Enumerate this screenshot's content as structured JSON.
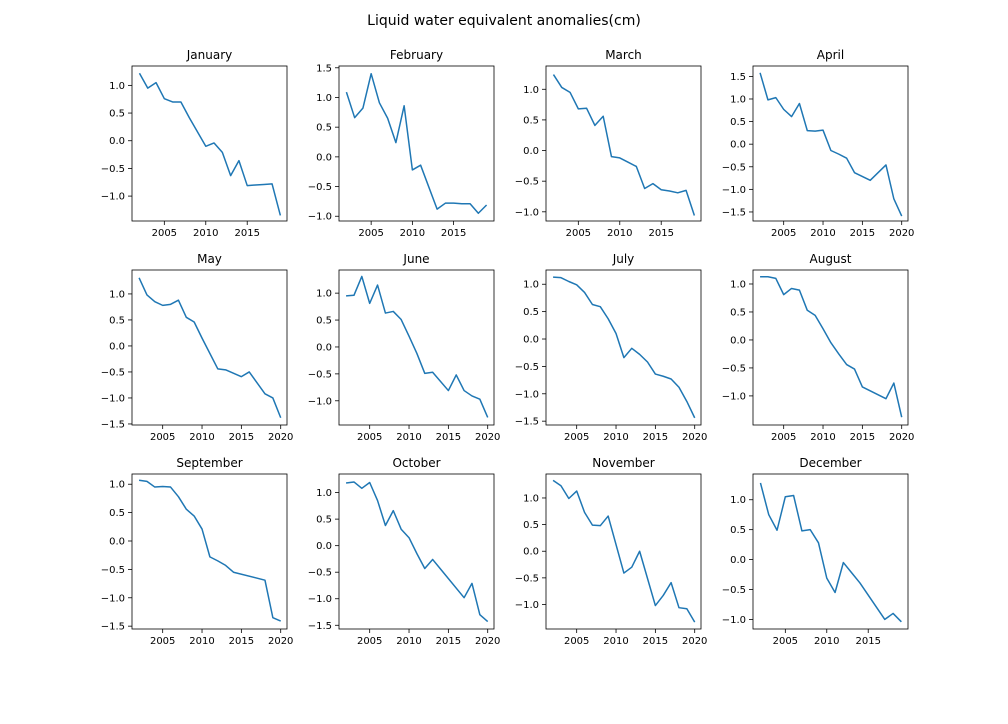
{
  "figure": {
    "title": "Liquid water equivalent anomalies(cm)"
  },
  "chart_data": [
    {
      "type": "line",
      "title": "January",
      "xlim": [
        2001.1,
        2019.8
      ],
      "ylim": [
        -1.45,
        1.35
      ],
      "xticks": [
        2005,
        2010,
        2015
      ],
      "yticks": [
        -1.0,
        -0.5,
        0.0,
        0.5,
        1.0
      ],
      "x": [
        2002,
        2003,
        2004,
        2005,
        2006,
        2007,
        2008,
        2010,
        2011,
        2012,
        2013,
        2014,
        2015,
        2016,
        2017,
        2018,
        2019
      ],
      "y": [
        1.22,
        0.95,
        1.05,
        0.76,
        0.7,
        0.7,
        0.42,
        -0.1,
        -0.04,
        -0.21,
        -0.63,
        -0.36,
        -0.81,
        -0.8,
        -0.79,
        -0.78,
        -1.35
      ],
      "color": "#1f77b4"
    },
    {
      "type": "line",
      "title": "February",
      "xlim": [
        2001.1,
        2019.9
      ],
      "ylim": [
        -1.08,
        1.53
      ],
      "xticks": [
        2005,
        2010,
        2015
      ],
      "yticks": [
        -1.0,
        -0.5,
        0.0,
        0.5,
        1.0,
        1.5
      ],
      "x": [
        2002,
        2003,
        2004,
        2005,
        2006,
        2007,
        2008,
        2009,
        2010,
        2011,
        2013,
        2014,
        2015,
        2016,
        2017,
        2018,
        2019
      ],
      "y": [
        1.09,
        0.66,
        0.82,
        1.4,
        0.91,
        0.65,
        0.24,
        0.86,
        -0.22,
        -0.14,
        -0.88,
        -0.78,
        -0.78,
        -0.79,
        -0.79,
        -0.95,
        -0.81
      ],
      "color": "#1f77b4"
    },
    {
      "type": "line",
      "title": "March",
      "xlim": [
        2001.1,
        2019.8
      ],
      "ylim": [
        -1.15,
        1.38
      ],
      "xticks": [
        2005,
        2010,
        2015
      ],
      "yticks": [
        -1.0,
        -0.5,
        0.0,
        0.5,
        1.0
      ],
      "x": [
        2002,
        2003,
        2004,
        2005,
        2006,
        2007,
        2008,
        2009,
        2010,
        2011,
        2012,
        2013,
        2014,
        2015,
        2016,
        2017,
        2018,
        2019
      ],
      "y": [
        1.24,
        1.03,
        0.95,
        0.68,
        0.69,
        0.41,
        0.56,
        -0.1,
        -0.12,
        -0.19,
        -0.26,
        -0.62,
        -0.54,
        -0.64,
        -0.66,
        -0.69,
        -0.65,
        -1.06
      ],
      "color": "#1f77b4"
    },
    {
      "type": "line",
      "title": "April",
      "xlim": [
        2001.1,
        2020.8
      ],
      "ylim": [
        -1.7,
        1.73
      ],
      "xticks": [
        2005,
        2010,
        2015,
        2020
      ],
      "yticks": [
        -1.5,
        -1.0,
        -0.5,
        0.0,
        0.5,
        1.0,
        1.5
      ],
      "x": [
        2002,
        2003,
        2004,
        2005,
        2006,
        2007,
        2008,
        2009,
        2010,
        2011,
        2012,
        2013,
        2014,
        2016,
        2018,
        2019,
        2020
      ],
      "y": [
        1.58,
        0.98,
        1.03,
        0.77,
        0.61,
        0.9,
        0.3,
        0.29,
        0.31,
        -0.14,
        -0.22,
        -0.31,
        -0.63,
        -0.8,
        -0.46,
        -1.21,
        -1.59
      ],
      "color": "#1f77b4"
    },
    {
      "type": "line",
      "title": "May",
      "xlim": [
        2001.1,
        2020.8
      ],
      "ylim": [
        -1.52,
        1.46
      ],
      "xticks": [
        2005,
        2010,
        2015,
        2020
      ],
      "yticks": [
        -1.5,
        -1.0,
        -0.5,
        0.0,
        0.5,
        1.0
      ],
      "x": [
        2002,
        2003,
        2004,
        2005,
        2006,
        2007,
        2008,
        2009,
        2010,
        2012,
        2013,
        2015,
        2016,
        2018,
        2019,
        2020
      ],
      "y": [
        1.31,
        0.98,
        0.85,
        0.78,
        0.8,
        0.88,
        0.55,
        0.46,
        0.15,
        -0.44,
        -0.46,
        -0.59,
        -0.5,
        -0.92,
        -1.0,
        -1.38
      ],
      "color": "#1f77b4"
    },
    {
      "type": "line",
      "title": "June",
      "xlim": [
        2001.1,
        2020.8
      ],
      "ylim": [
        -1.45,
        1.43
      ],
      "xticks": [
        2005,
        2010,
        2015,
        2020
      ],
      "yticks": [
        -1.0,
        -0.5,
        0.0,
        0.5,
        1.0
      ],
      "x": [
        2002,
        2003,
        2004,
        2005,
        2006,
        2007,
        2008,
        2009,
        2010,
        2011,
        2012,
        2013,
        2015,
        2016,
        2017,
        2018,
        2019,
        2020
      ],
      "y": [
        0.95,
        0.96,
        1.31,
        0.81,
        1.15,
        0.63,
        0.66,
        0.51,
        0.2,
        -0.12,
        -0.49,
        -0.47,
        -0.81,
        -0.52,
        -0.81,
        -0.91,
        -0.97,
        -1.31
      ],
      "color": "#1f77b4"
    },
    {
      "type": "line",
      "title": "July",
      "xlim": [
        2001.1,
        2020.8
      ],
      "ylim": [
        -1.57,
        1.26
      ],
      "xticks": [
        2005,
        2010,
        2015,
        2020
      ],
      "yticks": [
        -1.5,
        -1.0,
        -0.5,
        0.0,
        0.5,
        1.0
      ],
      "x": [
        2002,
        2003,
        2004,
        2005,
        2006,
        2007,
        2008,
        2009,
        2010,
        2011,
        2012,
        2013,
        2014,
        2015,
        2016,
        2017,
        2018,
        2019,
        2020
      ],
      "y": [
        1.13,
        1.12,
        1.05,
        0.99,
        0.85,
        0.63,
        0.59,
        0.37,
        0.1,
        -0.34,
        -0.17,
        -0.28,
        -0.42,
        -0.64,
        -0.68,
        -0.73,
        -0.88,
        -1.14,
        -1.44
      ],
      "color": "#1f77b4"
    },
    {
      "type": "line",
      "title": "August",
      "xlim": [
        2001.1,
        2020.8
      ],
      "ylim": [
        -1.52,
        1.25
      ],
      "xticks": [
        2005,
        2010,
        2015,
        2020
      ],
      "yticks": [
        -1.0,
        -0.5,
        0.0,
        0.5,
        1.0
      ],
      "x": [
        2002,
        2003,
        2004,
        2005,
        2006,
        2007,
        2008,
        2009,
        2010,
        2011,
        2012,
        2013,
        2014,
        2015,
        2018,
        2019,
        2020
      ],
      "y": [
        1.13,
        1.13,
        1.1,
        0.81,
        0.92,
        0.89,
        0.53,
        0.44,
        0.2,
        -0.05,
        -0.25,
        -0.44,
        -0.52,
        -0.84,
        -1.05,
        -0.77,
        -1.38
      ],
      "color": "#1f77b4"
    },
    {
      "type": "line",
      "title": "September",
      "xlim": [
        2001.1,
        2020.8
      ],
      "ylim": [
        -1.55,
        1.18
      ],
      "xticks": [
        2005,
        2010,
        2015,
        2020
      ],
      "yticks": [
        -1.5,
        -1.0,
        -0.5,
        0.0,
        0.5,
        1.0
      ],
      "x": [
        2002,
        2003,
        2004,
        2005,
        2006,
        2007,
        2008,
        2009,
        2010,
        2011,
        2012,
        2013,
        2014,
        2018,
        2019,
        2020
      ],
      "y": [
        1.07,
        1.05,
        0.95,
        0.96,
        0.95,
        0.78,
        0.56,
        0.44,
        0.21,
        -0.28,
        -0.35,
        -0.43,
        -0.55,
        -0.69,
        -1.35,
        -1.41
      ],
      "color": "#1f77b4"
    },
    {
      "type": "line",
      "title": "October",
      "xlim": [
        2001.1,
        2020.8
      ],
      "ylim": [
        -1.57,
        1.35
      ],
      "xticks": [
        2005,
        2010,
        2015,
        2020
      ],
      "yticks": [
        -1.5,
        -1.0,
        -0.5,
        0.0,
        0.5,
        1.0
      ],
      "x": [
        2002,
        2003,
        2004,
        2005,
        2006,
        2007,
        2008,
        2009,
        2010,
        2011,
        2012,
        2013,
        2014,
        2017,
        2018,
        2019,
        2020
      ],
      "y": [
        1.18,
        1.2,
        1.08,
        1.19,
        0.85,
        0.38,
        0.66,
        0.31,
        0.15,
        -0.15,
        -0.43,
        -0.26,
        -0.44,
        -0.98,
        -0.71,
        -1.3,
        -1.43
      ],
      "color": "#1f77b4"
    },
    {
      "type": "line",
      "title": "November",
      "xlim": [
        2001.1,
        2020.8
      ],
      "ylim": [
        -1.46,
        1.45
      ],
      "xticks": [
        2005,
        2010,
        2015,
        2020
      ],
      "yticks": [
        -1.0,
        -0.5,
        0.0,
        0.5,
        1.0
      ],
      "x": [
        2002,
        2003,
        2004,
        2005,
        2006,
        2007,
        2008,
        2009,
        2011,
        2012,
        2013,
        2015,
        2016,
        2017,
        2018,
        2019,
        2020
      ],
      "y": [
        1.33,
        1.23,
        0.99,
        1.13,
        0.73,
        0.49,
        0.48,
        0.66,
        -0.41,
        -0.3,
        0.0,
        -1.02,
        -0.83,
        -0.59,
        -1.06,
        -1.08,
        -1.33
      ],
      "color": "#1f77b4"
    },
    {
      "type": "line",
      "title": "December",
      "xlim": [
        2001.1,
        2019.8
      ],
      "ylim": [
        -1.16,
        1.43
      ],
      "xticks": [
        2005,
        2010,
        2015
      ],
      "yticks": [
        -1.0,
        -0.5,
        0.0,
        0.5,
        1.0
      ],
      "x": [
        2002,
        2003,
        2004,
        2005,
        2006,
        2007,
        2008,
        2009,
        2010,
        2011,
        2012,
        2013,
        2014,
        2017,
        2018,
        2019
      ],
      "y": [
        1.28,
        0.75,
        0.49,
        1.05,
        1.07,
        0.48,
        0.5,
        0.28,
        -0.31,
        -0.55,
        -0.05,
        -0.22,
        -0.39,
        -1.0,
        -0.9,
        -1.04
      ],
      "color": "#1f77b4"
    }
  ]
}
